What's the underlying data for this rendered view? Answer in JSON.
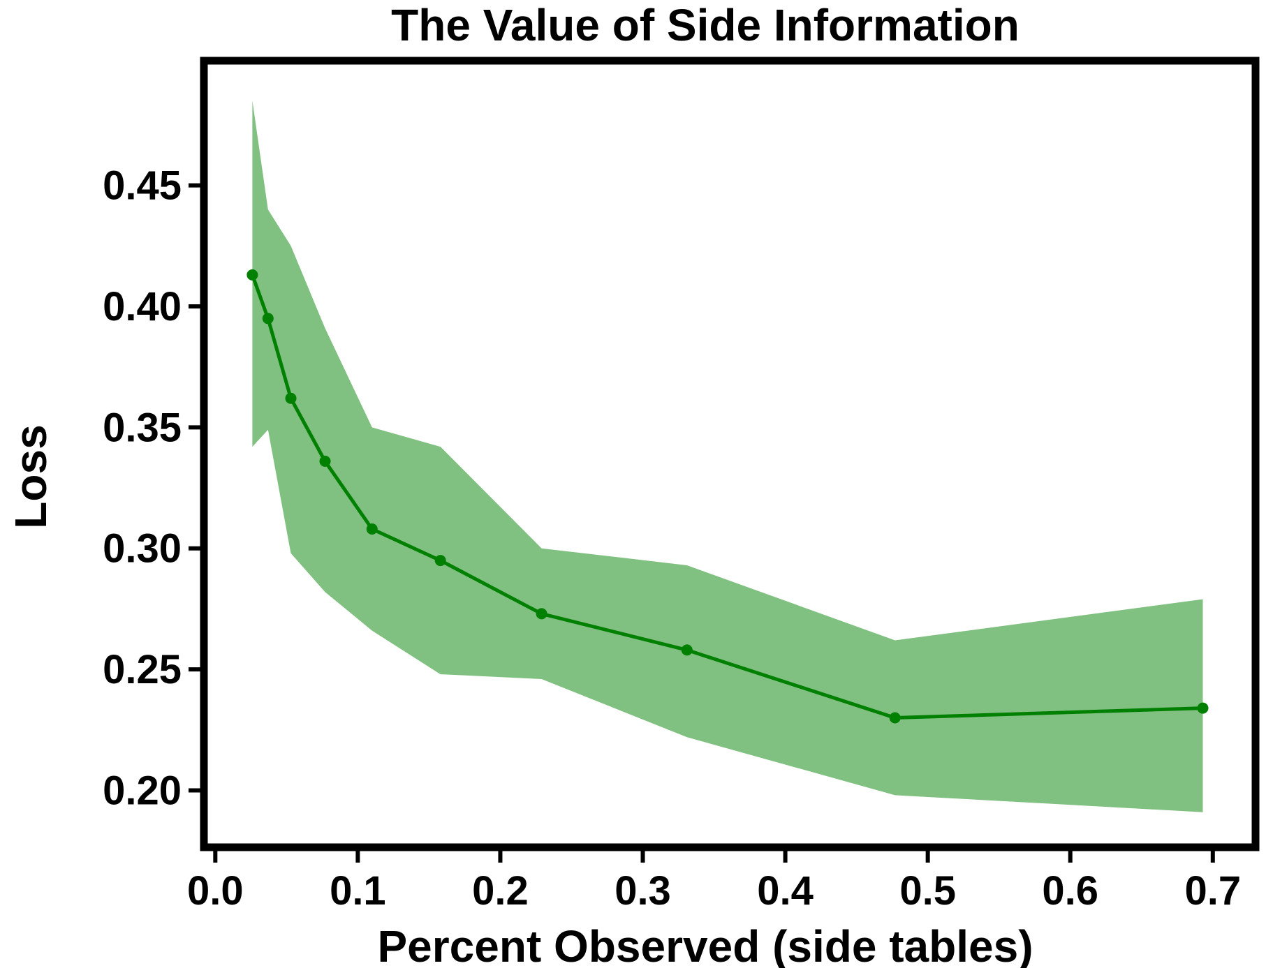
{
  "chart_data": {
    "type": "line",
    "title": "The Value of Side Information",
    "xlabel": "Percent Observed (side tables)",
    "ylabel": "Loss",
    "xlim": [
      -0.008,
      0.73
    ],
    "ylim": [
      0.1765,
      0.5015
    ],
    "xticks": [
      {
        "value": 0.0,
        "label": "0.0"
      },
      {
        "value": 0.1,
        "label": "0.1"
      },
      {
        "value": 0.2,
        "label": "0.2"
      },
      {
        "value": 0.3,
        "label": "0.3"
      },
      {
        "value": 0.4,
        "label": "0.4"
      },
      {
        "value": 0.5,
        "label": "0.5"
      },
      {
        "value": 0.6,
        "label": "0.6"
      },
      {
        "value": 0.7,
        "label": "0.7"
      }
    ],
    "yticks": [
      {
        "value": 0.2,
        "label": "0.20"
      },
      {
        "value": 0.25,
        "label": "0.25"
      },
      {
        "value": 0.3,
        "label": "0.30"
      },
      {
        "value": 0.35,
        "label": "0.35"
      },
      {
        "value": 0.4,
        "label": "0.40"
      },
      {
        "value": 0.45,
        "label": "0.45"
      }
    ],
    "grid": false,
    "legend": "none",
    "series": [
      {
        "color": "#008000",
        "band_color": "#80c080",
        "x": [
          0.026,
          0.037,
          0.053,
          0.077,
          0.11,
          0.158,
          0.229,
          0.331,
          0.477,
          0.693
        ],
        "y": [
          0.413,
          0.395,
          0.362,
          0.336,
          0.308,
          0.295,
          0.273,
          0.258,
          0.23,
          0.234
        ],
        "upper": [
          0.485,
          0.44,
          0.425,
          0.391,
          0.35,
          0.342,
          0.3,
          0.293,
          0.262,
          0.279
        ],
        "lower": [
          0.342,
          0.349,
          0.298,
          0.282,
          0.266,
          0.248,
          0.246,
          0.222,
          0.198,
          0.191
        ]
      }
    ]
  }
}
